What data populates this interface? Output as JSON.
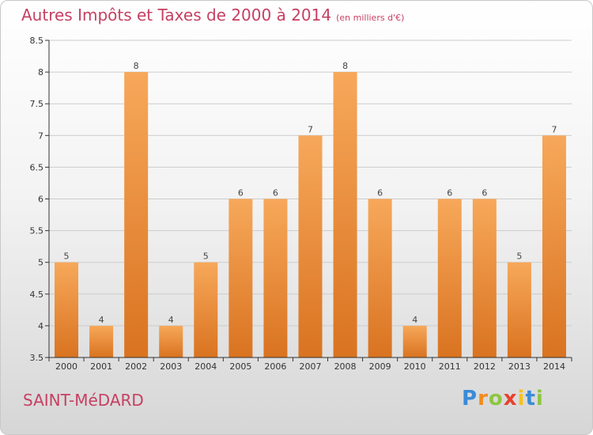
{
  "header": {
    "title": "Autres Impôts et Taxes de 2000 à 2014",
    "unit": "(en milliers d'€)"
  },
  "footer": {
    "commune": "SAINT-MéDARD",
    "logo_text": "Proxiti"
  },
  "colors": {
    "bar_top": "#f7a85a",
    "bar_bottom": "#d97320",
    "title": "#c64063",
    "grid": "#cccccc"
  },
  "chart_data": {
    "type": "bar",
    "categories": [
      "2000",
      "2001",
      "2002",
      "2003",
      "2004",
      "2005",
      "2006",
      "2007",
      "2008",
      "2009",
      "2010",
      "2011",
      "2012",
      "2013",
      "2014"
    ],
    "values": [
      5,
      4,
      8,
      4,
      5,
      6,
      6,
      7,
      8,
      6,
      4,
      6,
      6,
      5,
      7
    ],
    "data_labels": [
      "5",
      "4",
      "8",
      "4",
      "5",
      "6",
      "6",
      "7",
      "8",
      "6",
      "4",
      "6",
      "6",
      "5",
      "7"
    ],
    "yticks": [
      "3.5",
      "4",
      "4.5",
      "5",
      "5.5",
      "6",
      "6.5",
      "7",
      "7.5",
      "8",
      "8.5"
    ],
    "ylim": [
      3.5,
      8.5
    ],
    "grid": true,
    "title": "Autres Impôts et Taxes de 2000 à 2014",
    "xlabel": "",
    "ylabel": ""
  }
}
